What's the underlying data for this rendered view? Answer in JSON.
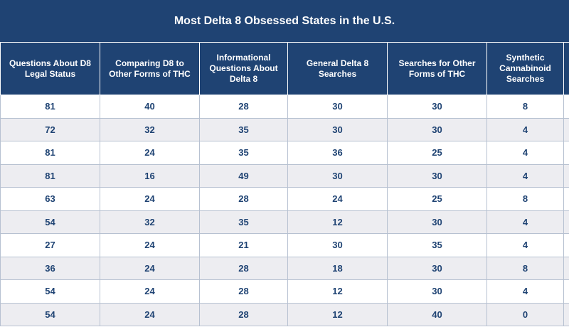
{
  "chart_data": {
    "type": "table",
    "title": "Most Delta 8 Obsessed States in the U.S.",
    "columns": [
      "Questions About D8 Legal Status",
      "Comparing D8 to Other Forms of THC",
      "Informational Questions About Delta 8",
      "General Delta 8 Searches",
      "Searches for Other Forms of THC",
      "Synthetic Cannabinoid Searches",
      ""
    ],
    "rows": [
      [
        "81",
        "40",
        "28",
        "30",
        "30",
        "8",
        ""
      ],
      [
        "72",
        "32",
        "35",
        "30",
        "30",
        "4",
        ""
      ],
      [
        "81",
        "24",
        "35",
        "36",
        "25",
        "4",
        ""
      ],
      [
        "81",
        "16",
        "49",
        "30",
        "30",
        "4",
        ""
      ],
      [
        "63",
        "24",
        "28",
        "24",
        "25",
        "8",
        ""
      ],
      [
        "54",
        "32",
        "35",
        "12",
        "30",
        "4",
        ""
      ],
      [
        "27",
        "24",
        "21",
        "30",
        "35",
        "4",
        ""
      ],
      [
        "36",
        "24",
        "28",
        "18",
        "30",
        "8",
        ""
      ],
      [
        "54",
        "24",
        "28",
        "12",
        "30",
        "4",
        ""
      ],
      [
        "54",
        "24",
        "28",
        "12",
        "40",
        "0",
        ""
      ]
    ]
  },
  "colors": {
    "header_bg": "#1f4373",
    "header_text": "#ffffff",
    "cell_text": "#1f4373",
    "stripe": "#ededf1",
    "grid_line": "#b7c1d1"
  }
}
